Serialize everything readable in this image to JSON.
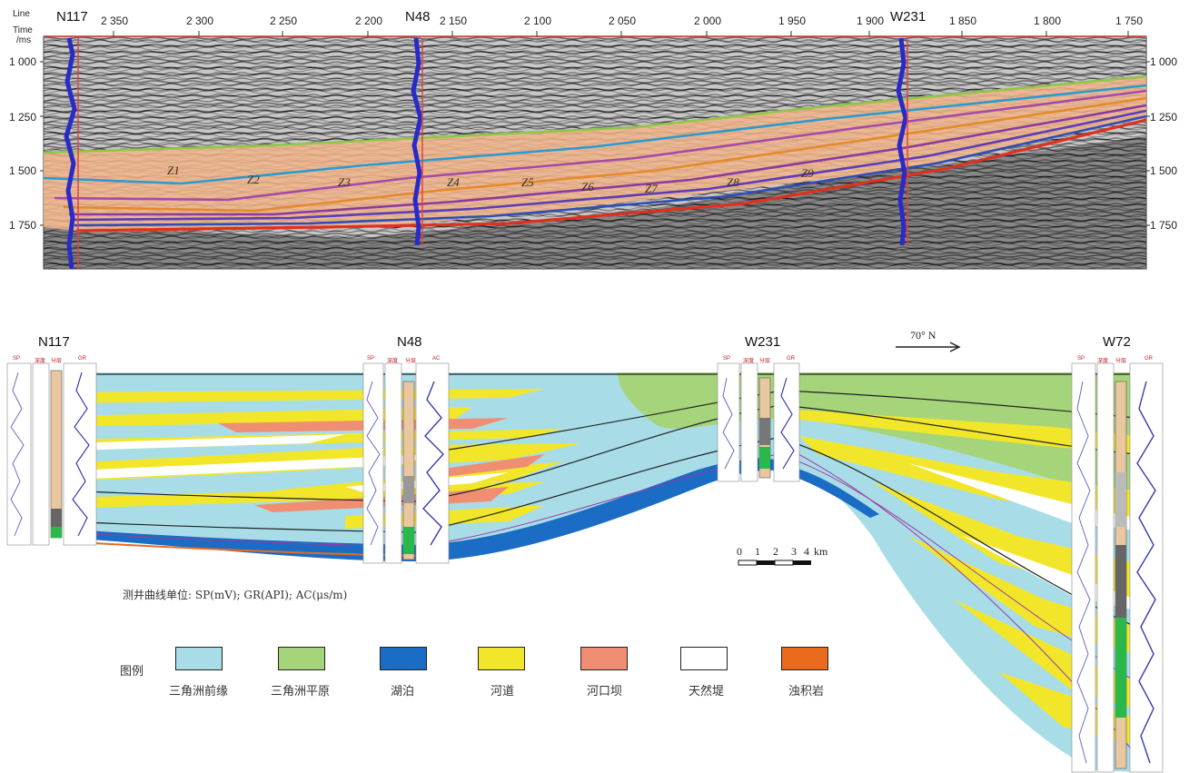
{
  "seismic": {
    "line_label": "Line",
    "time_label": "Time",
    "time_unit": "/ms",
    "line_ticks": [
      "2 350",
      "2 300",
      "2 250",
      "2 200",
      "2 150",
      "2 100",
      "2 050",
      "2 000",
      "1 950",
      "1 900",
      "1 850",
      "1 800",
      "1 750"
    ],
    "time_ticks": [
      "1 000",
      "1 250",
      "1 500",
      "1 750"
    ],
    "wells": [
      "N117",
      "N48",
      "W231"
    ],
    "zones": [
      "Z1",
      "Z2",
      "Z3",
      "Z4",
      "Z5",
      "Z6",
      "Z7",
      "Z8",
      "Z9"
    ]
  },
  "section": {
    "wells": [
      "N117",
      "N48",
      "W231",
      "W72"
    ],
    "direction": "70° N",
    "scale_ticks": [
      "0",
      "1",
      "2",
      "3",
      "4"
    ],
    "scale_unit": "km",
    "curve_headers": {
      "sp": "SP",
      "gr": "GR",
      "ac": "AC",
      "depth": "深度",
      "layer": "分层"
    },
    "units_note": "测井曲线单位: SP(mV); GR(API); AC(μs/m)"
  },
  "legend": {
    "title": "图例",
    "items": [
      {
        "label": "三角洲前缘",
        "color": "#a8dde8"
      },
      {
        "label": "三角洲平原",
        "color": "#a6d47a"
      },
      {
        "label": "湖泊",
        "color": "#1a6cc4"
      },
      {
        "label": "河道",
        "color": "#f2e62a"
      },
      {
        "label": "河口坝",
        "color": "#ef8e72"
      },
      {
        "label": "天然堤",
        "color": "#ffffff"
      },
      {
        "label": "浊积岩",
        "color": "#ea6a1e"
      }
    ]
  }
}
